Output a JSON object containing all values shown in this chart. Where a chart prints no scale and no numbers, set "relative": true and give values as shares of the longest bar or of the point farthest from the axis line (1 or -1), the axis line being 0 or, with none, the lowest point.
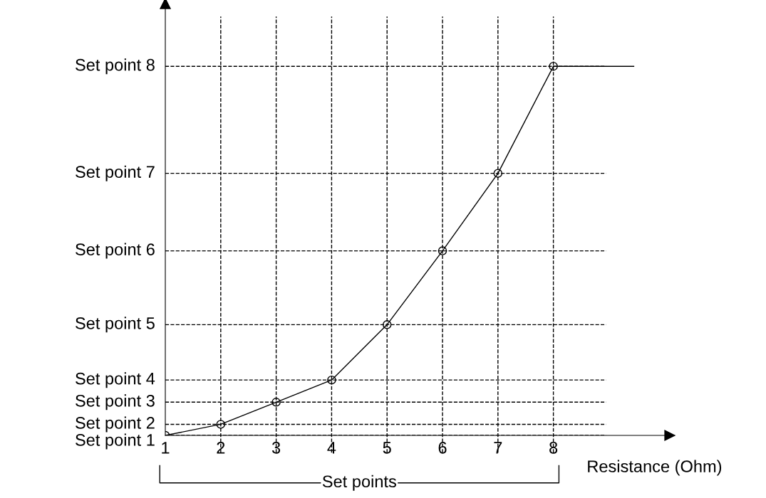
{
  "chart_data": {
    "type": "line",
    "xlabel": "Resistance (Ohm)",
    "relative": true,
    "x": [
      1,
      2,
      3,
      4,
      5,
      6,
      7,
      8
    ],
    "series": [
      {
        "color": "#000000",
        "marker": "circle",
        "values": [
          0,
          0.03,
          0.09,
          0.15,
          0.3,
          0.5,
          0.71,
          1.0
        ]
      },
      {
        "color": "#000000",
        "marker": "none",
        "x": [
          8,
          9.45
        ],
        "values": [
          1.0,
          1.0
        ]
      }
    ],
    "xlim": [
      1,
      10.1
    ],
    "xticks": [
      1,
      2,
      3,
      4,
      5,
      6,
      7,
      8
    ],
    "ref_lines": [
      {
        "axis": "y",
        "value": 0,
        "label": "Set point 1",
        "line_style": "dashed",
        "color": "#000000"
      },
      {
        "axis": "y",
        "value": 0.03,
        "label": "Set point 2",
        "line_style": "dashed",
        "color": "#000000"
      },
      {
        "axis": "y",
        "value": 0.09,
        "label": "Set point 3",
        "line_style": "dashed",
        "color": "#000000"
      },
      {
        "axis": "y",
        "value": 0.15,
        "label": "Set point 4",
        "line_style": "dashed",
        "color": "#000000"
      },
      {
        "axis": "y",
        "value": 0.3,
        "label": "Set point 5",
        "line_style": "dashed",
        "color": "#000000"
      },
      {
        "axis": "y",
        "value": 0.5,
        "label": "Set point 6",
        "line_style": "dashed",
        "color": "#000000"
      },
      {
        "axis": "y",
        "value": 0.71,
        "label": "Set point 7",
        "line_style": "dashed",
        "color": "#000000"
      },
      {
        "axis": "y",
        "value": 1.0,
        "label": "Set point 8",
        "line_style": "dashed",
        "color": "#000000"
      },
      {
        "axis": "x",
        "value": 2,
        "line_style": "dashed",
        "color": "#000000"
      },
      {
        "axis": "x",
        "value": 3,
        "line_style": "dashed",
        "color": "#000000"
      },
      {
        "axis": "x",
        "value": 4,
        "line_style": "dashed",
        "color": "#000000"
      },
      {
        "axis": "x",
        "value": 5,
        "line_style": "dashed",
        "color": "#000000"
      },
      {
        "axis": "x",
        "value": 6,
        "line_style": "dashed",
        "color": "#000000"
      },
      {
        "axis": "x",
        "value": 7,
        "line_style": "dashed",
        "color": "#000000"
      },
      {
        "axis": "x",
        "value": 8,
        "line_style": "dashed",
        "color": "#000000"
      }
    ],
    "line_style": "solid",
    "annotations": [
      "Set points"
    ]
  }
}
